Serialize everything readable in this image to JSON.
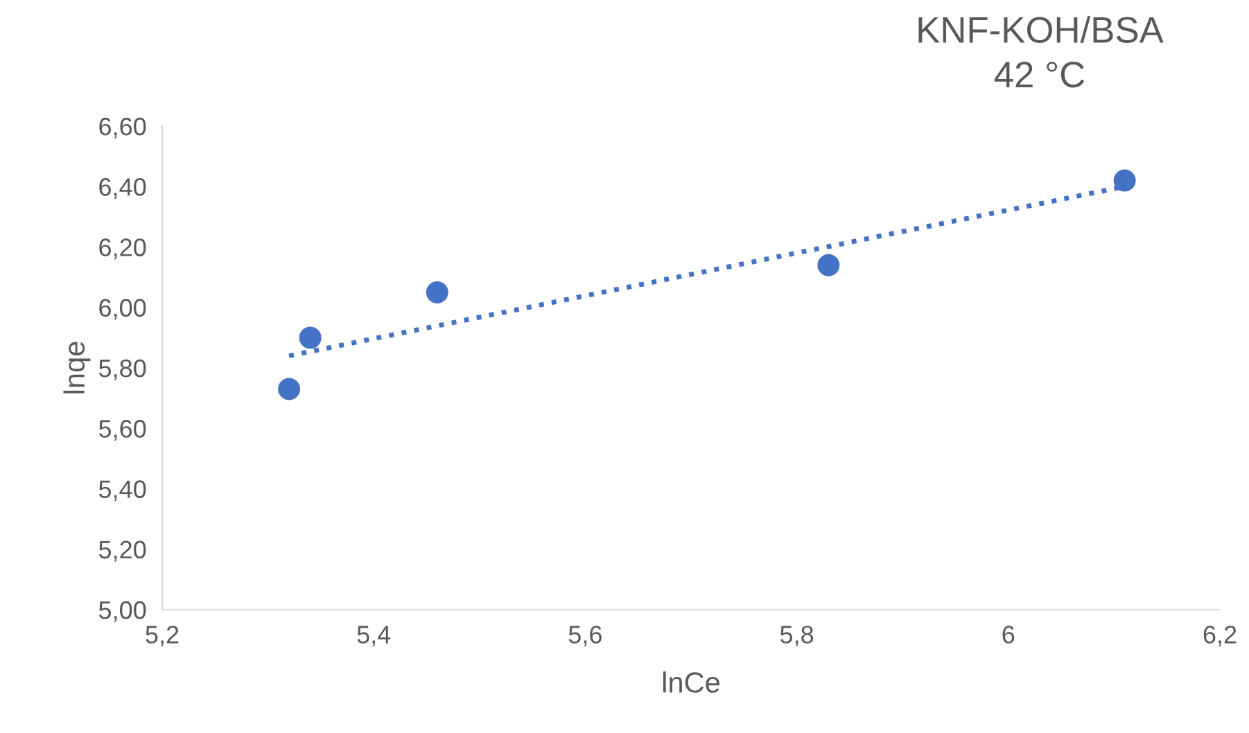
{
  "chart_data": {
    "type": "scatter",
    "title": "KNF-KOH/BSA\n42 °C",
    "xlabel": "lnCe",
    "ylabel": "lnqe",
    "series": [
      {
        "color": "#4472c4",
        "marker": "circle",
        "x": [
          5.32,
          5.34,
          5.46,
          5.83,
          6.11
        ],
        "values": [
          5.73,
          5.9,
          6.05,
          6.14,
          6.42
        ]
      },
      {
        "type": "line",
        "color": "#4472c4",
        "line_style": "dotted",
        "marker": "none",
        "x": [
          5.32,
          6.11
        ],
        "values": [
          5.84,
          6.4
        ]
      }
    ],
    "xlim": [
      5.2,
      6.2
    ],
    "xticks": [
      {
        "value": 5.2,
        "label": "5,2"
      },
      {
        "value": 5.4,
        "label": "5,4"
      },
      {
        "value": 5.6,
        "label": "5,6"
      },
      {
        "value": 5.8,
        "label": "5,8"
      },
      6,
      {
        "value": 6.2,
        "label": "6,2"
      }
    ],
    "ylim": [
      5.0,
      6.6
    ],
    "yticks": [
      {
        "value": 5.0,
        "label": "5,00"
      },
      {
        "value": 5.2,
        "label": "5,20"
      },
      {
        "value": 5.4,
        "label": "5,40"
      },
      {
        "value": 5.6,
        "label": "5,60"
      },
      {
        "value": 5.8,
        "label": "5,80"
      },
      {
        "value": 6.0,
        "label": "6,00"
      },
      {
        "value": 6.2,
        "label": "6,20"
      },
      {
        "value": 6.4,
        "label": "6,40"
      },
      {
        "value": 6.6,
        "label": "6,60"
      }
    ],
    "grid": false,
    "legend": false
  }
}
